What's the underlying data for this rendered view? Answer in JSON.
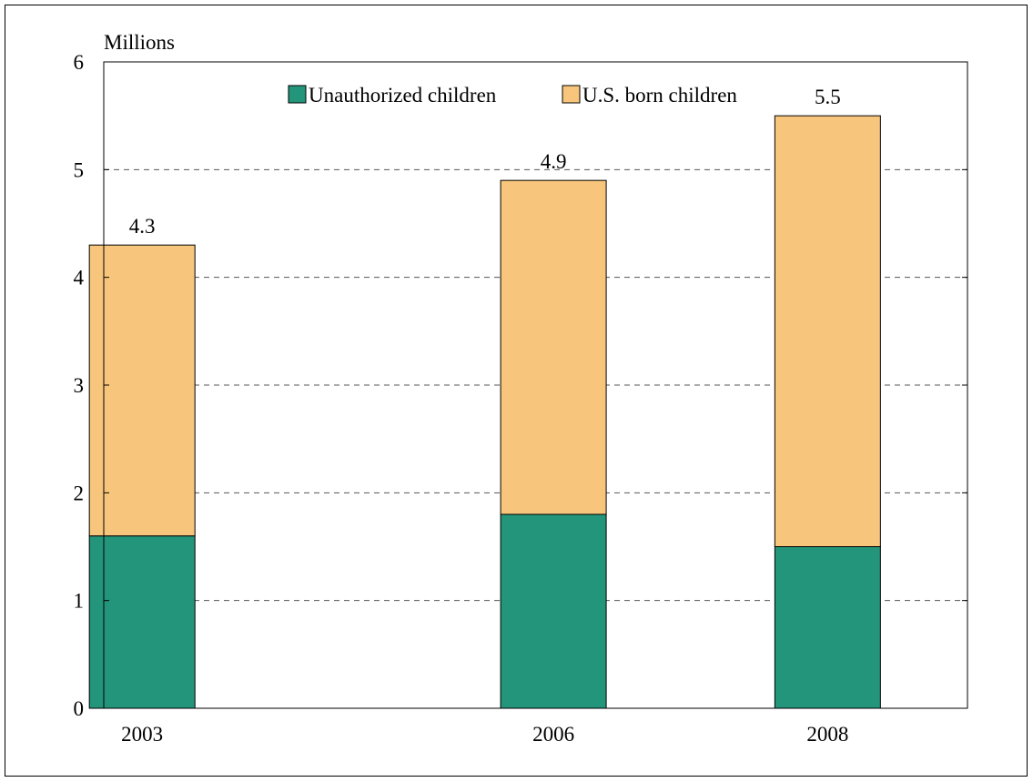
{
  "chart_data": {
    "type": "bar",
    "stacked": true,
    "title": "",
    "xlabel": "",
    "ylabel": "Millions",
    "ylim": [
      0,
      6
    ],
    "yticks": [
      0,
      1,
      2,
      3,
      4,
      5,
      6
    ],
    "grid": "horizontal-dashed",
    "legend_position": "top-center",
    "categories": [
      "2003",
      "2006",
      "2008"
    ],
    "x_values": [
      2003,
      2006,
      2008
    ],
    "series": [
      {
        "name": "Unauthorized children",
        "color": "#23957a",
        "values": [
          1.6,
          1.8,
          1.5
        ]
      },
      {
        "name": "U.S. born children",
        "color": "#f7c67c",
        "values": [
          2.7,
          3.1,
          4.0
        ]
      }
    ],
    "totals": [
      "4.3",
      "4.9",
      "5.5"
    ]
  }
}
